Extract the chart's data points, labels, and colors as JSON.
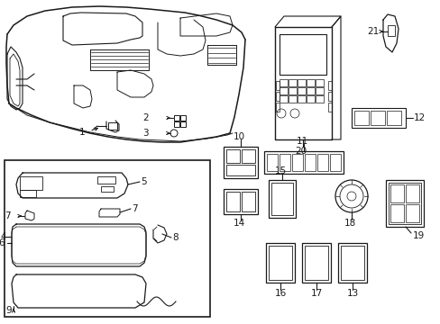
{
  "background_color": "#ffffff",
  "line_color": "#1a1a1a",
  "label_fontsize": 7.5,
  "fig_width": 4.89,
  "fig_height": 3.6,
  "dpi": 100
}
